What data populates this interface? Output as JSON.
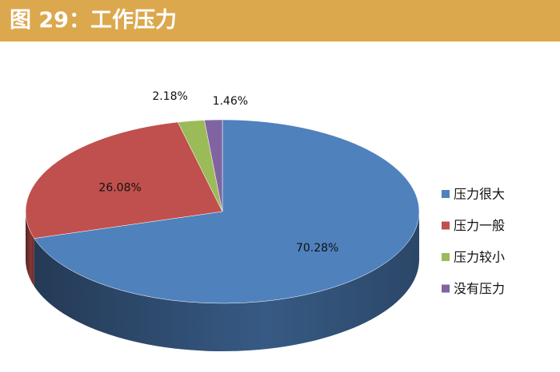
{
  "chart_data": {
    "type": "pie",
    "title": "图 29：工作压力",
    "categories": [
      "压力很大",
      "压力一般",
      "压力较小",
      "没有压力"
    ],
    "values": [
      70.28,
      26.08,
      2.18,
      1.46
    ],
    "value_labels": [
      "70.28%",
      "26.08%",
      "2.18%",
      "1.46%"
    ],
    "colors": [
      "#4f81bd",
      "#c0504d",
      "#9bbb59",
      "#8064a2"
    ],
    "legend": "right"
  }
}
